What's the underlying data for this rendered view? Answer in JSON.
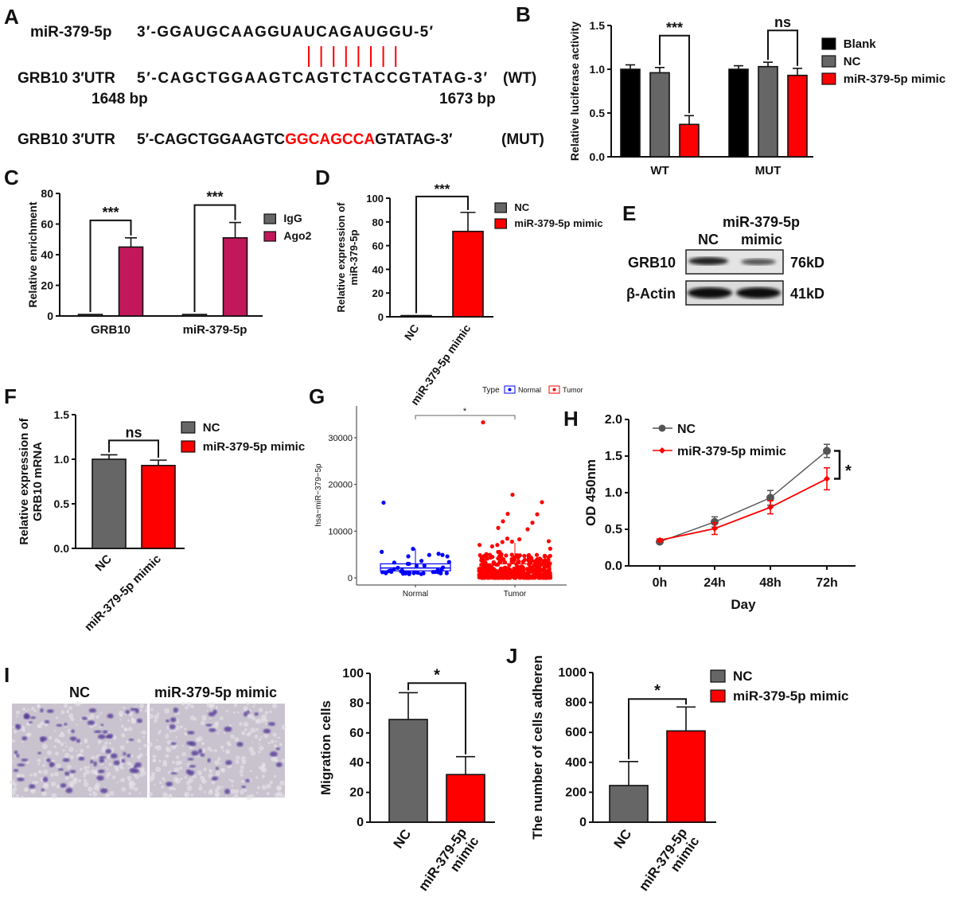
{
  "panels": [
    "A",
    "B",
    "C",
    "D",
    "E",
    "F",
    "G",
    "H",
    "I",
    "J"
  ],
  "sequence": {
    "mirna_label": "miR-379-5p",
    "mirna_seq": "3′-GGAUGCAAGGUAUCAGAUGGU-5′",
    "wt_label": "GRB10 3′UTR",
    "wt_seq": "5′-CAGCTGGAAGTCAGTCTACCGTATAG-3′",
    "wt_tag": "(WT)",
    "start_bp": "1648 bp",
    "end_bp": "1673 bp",
    "mut_label": "GRB10 3′UTR",
    "mut_seq_prefix": "5′-CAGCTGGAAGTC",
    "mut_seq_mutated": "GGCAGCCA",
    "mut_seq_suffix": "GTATAG-3′",
    "mut_tag": "(MUT)",
    "pairing_color": "#ff0000"
  },
  "western_blot": {
    "header": "miR-379-5p",
    "lanes": [
      "NC",
      "mimic"
    ],
    "rows": [
      {
        "protein": "GRB10",
        "size": "76kD"
      },
      {
        "protein": "β-Actin",
        "size": "41kD"
      }
    ]
  },
  "transwell": {
    "labels": [
      "NC",
      "miR-379-5p mimic"
    ]
  },
  "chart_data": [
    {
      "panel": "B",
      "type": "bar",
      "categories": [
        "WT",
        "MUT"
      ],
      "series": [
        {
          "name": "Blank",
          "color": "#000000",
          "values": [
            1.0,
            1.0
          ],
          "errors": [
            0.05,
            0.04
          ]
        },
        {
          "name": "NC",
          "color": "#666666",
          "values": [
            0.96,
            1.03
          ],
          "errors": [
            0.06,
            0.05
          ]
        },
        {
          "name": "miR-379-5p mimic",
          "color": "#ff0000",
          "values": [
            0.37,
            0.93
          ],
          "errors": [
            0.1,
            0.08
          ]
        }
      ],
      "ylabel": [
        "Relative luciferase activity"
      ],
      "ylim": [
        0,
        1.5
      ],
      "yticks": [
        "0.0",
        "0.5",
        "1.0",
        "1.5"
      ],
      "legend": "right",
      "significance": [
        {
          "category": 0,
          "series": [
            1,
            2
          ],
          "label": "***"
        },
        {
          "category": 1,
          "series": [
            1,
            2
          ],
          "label": "ns"
        }
      ]
    },
    {
      "panel": "C",
      "type": "bar",
      "categories": [
        "GRB10",
        "miR-379-5p"
      ],
      "series": [
        {
          "name": "IgG",
          "color": "#666666",
          "values": [
            1,
            1
          ],
          "errors": [
            0,
            0
          ]
        },
        {
          "name": "Ago2",
          "color": "#c2185b",
          "values": [
            45,
            51
          ],
          "errors": [
            6,
            10
          ]
        }
      ],
      "ylabel": [
        "Relative enrichment"
      ],
      "ylim": [
        0,
        80
      ],
      "yticks": [
        "0",
        "20",
        "40",
        "60",
        "80"
      ],
      "legend": "right",
      "significance": [
        {
          "category": 0,
          "series": [
            0,
            1
          ],
          "label": "***"
        },
        {
          "category": 1,
          "series": [
            0,
            1
          ],
          "label": "***"
        }
      ]
    },
    {
      "panel": "D",
      "type": "bar",
      "categories": [
        "NC",
        "miR-379-5p mimic"
      ],
      "series": [
        {
          "name": "NC",
          "color": "#666666",
          "values": [
            1,
            null
          ],
          "errors": [
            0,
            null
          ]
        },
        {
          "name": "miR-379-5p mimic",
          "color": "#ff0000",
          "values": [
            null,
            72
          ],
          "errors": [
            null,
            16
          ]
        }
      ],
      "ylabel": [
        "Relative expression of",
        "miR-379-5p"
      ],
      "ylim": [
        0,
        100
      ],
      "yticks": [
        "0",
        "20",
        "40",
        "60",
        "80",
        "100"
      ],
      "legend": "right",
      "significance": [
        {
          "category": [
            0,
            1
          ],
          "label": "***"
        }
      ]
    },
    {
      "panel": "F",
      "type": "bar",
      "categories": [
        "NC",
        "miR-379-5p mimic"
      ],
      "series": [
        {
          "name": "NC",
          "color": "#666666",
          "values": [
            1.0,
            null
          ],
          "errors": [
            0.05,
            null
          ]
        },
        {
          "name": "miR-379-5p mimic",
          "color": "#ff0000",
          "values": [
            null,
            0.93
          ],
          "errors": [
            null,
            0.06
          ]
        }
      ],
      "ylabel": [
        "Relative expression of",
        "GRB10 mRNA"
      ],
      "ylim": [
        0,
        1.5
      ],
      "yticks": [
        "0.0",
        "0.5",
        "1.0",
        "1.5"
      ],
      "legend": "right",
      "significance": [
        {
          "category": [
            0,
            1
          ],
          "label": "ns"
        }
      ]
    },
    {
      "panel": "G",
      "type": "box",
      "categories": [
        "Normal",
        "Tumor"
      ],
      "legend_title": "Type",
      "series": [
        {
          "name": "Normal",
          "color": "#0000ff",
          "q1": 1500,
          "median": 2100,
          "q3": 3000,
          "min": 800,
          "max": 6200,
          "notable_points": [
            16100,
            6200,
            4900,
            4600
          ]
        },
        {
          "name": "Tumor",
          "color": "#ff0000",
          "q1": 1000,
          "median": 1700,
          "q3": 3000,
          "min": 0,
          "max": 7500,
          "notable_points": [
            33300,
            17800,
            16200,
            13700,
            13600,
            12100,
            11800,
            10700,
            10400
          ]
        }
      ],
      "ylabel": "hsa−miR−379−5p",
      "ylim": [
        -1000,
        35000
      ],
      "yticks": [
        "0",
        "10000",
        "20000",
        "30000"
      ],
      "legend": "top",
      "significance": [
        {
          "category": [
            0,
            1
          ],
          "label": "*"
        }
      ]
    },
    {
      "panel": "H",
      "type": "line",
      "x": [
        "0h",
        "24h",
        "48h",
        "72h"
      ],
      "series": [
        {
          "name": "NC",
          "color": "#555555",
          "values": [
            0.33,
            0.6,
            0.93,
            1.57
          ],
          "errors": [
            0.02,
            0.07,
            0.1,
            0.09
          ]
        },
        {
          "name": "miR-379-5p mimic",
          "color": "#ff0000",
          "values": [
            0.35,
            0.51,
            0.8,
            1.19
          ],
          "errors": [
            0.02,
            0.08,
            0.09,
            0.15
          ]
        }
      ],
      "xlabel": "Day",
      "ylabel": "OD 450nm",
      "ylim": [
        0,
        2.0
      ],
      "yticks": [
        "0.0",
        "0.5",
        "1.0",
        "1.5",
        "2.0"
      ],
      "legend": "top-left",
      "significance": [
        {
          "label": "*"
        }
      ]
    },
    {
      "panel": "I",
      "type": "bar",
      "categories": [
        "NC",
        "miR-379-5p mimic"
      ],
      "series": [
        {
          "name": "NC",
          "color": "#666666",
          "values": [
            69,
            null
          ],
          "errors": [
            18,
            null
          ]
        },
        {
          "name": "miR-379-5p mimic",
          "color": "#ff0000",
          "values": [
            null,
            32
          ],
          "errors": [
            null,
            12
          ]
        }
      ],
      "ylabel": [
        "Migration cells"
      ],
      "ylim": [
        0,
        100
      ],
      "yticks": [
        "0",
        "20",
        "40",
        "60",
        "80",
        "100"
      ],
      "significance": [
        {
          "category": [
            0,
            1
          ],
          "label": "*"
        }
      ]
    },
    {
      "panel": "J",
      "type": "bar",
      "categories": [
        "NC",
        "miR-379-5p mimic"
      ],
      "series": [
        {
          "name": "NC",
          "color": "#666666",
          "values": [
            245,
            null
          ],
          "errors": [
            160,
            null
          ]
        },
        {
          "name": "miR-379-5p mimic",
          "color": "#ff0000",
          "values": [
            null,
            610
          ],
          "errors": [
            null,
            160
          ]
        }
      ],
      "ylabel": [
        "The number of cells adheren"
      ],
      "ylim": [
        0,
        1000
      ],
      "yticks": [
        "0",
        "200",
        "400",
        "600",
        "800",
        "1000"
      ],
      "legend": "right",
      "significance": [
        {
          "category": [
            0,
            1
          ],
          "label": "*"
        }
      ]
    }
  ]
}
